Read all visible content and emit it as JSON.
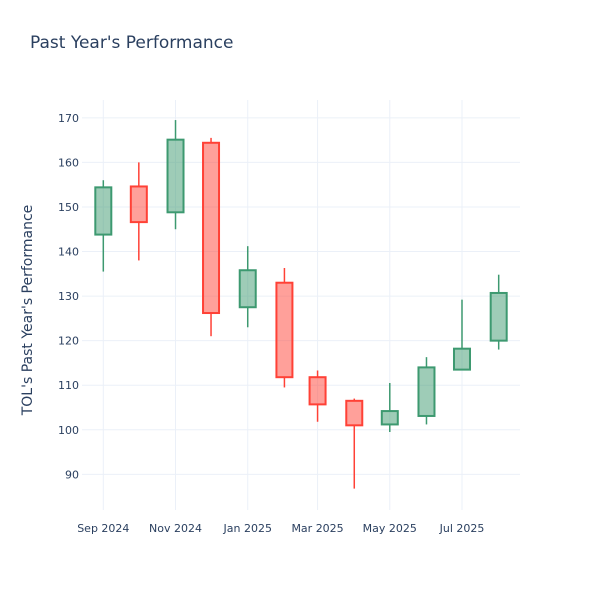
{
  "chart_data": {
    "type": "candlestick",
    "title": "Past Year's Performance",
    "xlabel": "",
    "ylabel": "TOL's Past Year's Performance",
    "ylim": [
      82,
      174
    ],
    "yticks": [
      90,
      100,
      110,
      120,
      130,
      140,
      150,
      160,
      170
    ],
    "xticks": [
      {
        "date": "2024-09-01",
        "label": "Sep 2024"
      },
      {
        "date": "2024-11-01",
        "label": "Nov 2024"
      },
      {
        "date": "2025-01-01",
        "label": "Jan 2025"
      },
      {
        "date": "2025-03-01",
        "label": "Mar 2025"
      },
      {
        "date": "2025-05-01",
        "label": "May 2025"
      },
      {
        "date": "2025-07-01",
        "label": "Jul 2025"
      }
    ],
    "xlim": [
      "2024-08-14",
      "2025-08-19"
    ],
    "grid": true,
    "legend": "none",
    "colors": {
      "increasing": "#3d9970",
      "decreasing": "#ff4136"
    },
    "candles": [
      {
        "date": "2024-09-01",
        "open": 143.8,
        "high": 156.0,
        "low": 135.5,
        "close": 154.4
      },
      {
        "date": "2024-10-01",
        "open": 154.6,
        "high": 160.0,
        "low": 138.0,
        "close": 146.6
      },
      {
        "date": "2024-11-01",
        "open": 148.8,
        "high": 169.5,
        "low": 145.0,
        "close": 165.1
      },
      {
        "date": "2024-12-01",
        "open": 164.4,
        "high": 165.5,
        "low": 121.0,
        "close": 126.2
      },
      {
        "date": "2025-01-01",
        "open": 127.5,
        "high": 141.2,
        "low": 123.0,
        "close": 135.8
      },
      {
        "date": "2025-02-01",
        "open": 133.0,
        "high": 136.3,
        "low": 109.5,
        "close": 111.8
      },
      {
        "date": "2025-03-01",
        "open": 111.8,
        "high": 113.3,
        "low": 101.8,
        "close": 105.7
      },
      {
        "date": "2025-04-01",
        "open": 106.5,
        "high": 107.0,
        "low": 86.8,
        "close": 101.0
      },
      {
        "date": "2025-05-01",
        "open": 101.2,
        "high": 110.5,
        "low": 99.5,
        "close": 104.2
      },
      {
        "date": "2025-06-01",
        "open": 103.1,
        "high": 116.3,
        "low": 101.2,
        "close": 114.0
      },
      {
        "date": "2025-07-01",
        "open": 113.5,
        "high": 129.2,
        "low": 113.5,
        "close": 118.2
      },
      {
        "date": "2025-08-01",
        "open": 120.0,
        "high": 134.8,
        "low": 118.0,
        "close": 130.7
      }
    ]
  }
}
